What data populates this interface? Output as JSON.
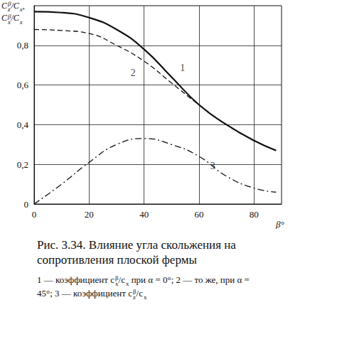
{
  "chart_data": {
    "type": "line",
    "ylabel": [
      [
        {
          "base": "C",
          "sub": "z",
          "sup": "β"
        },
        "/",
        {
          "base": "C",
          "sub": "x"
        },
        ","
      ],
      [
        {
          "base": "C",
          "sub": "x",
          "sup": "β"
        },
        "/",
        {
          "base": "C",
          "sub": "x"
        }
      ]
    ],
    "xlabel": "β°",
    "x": [
      0,
      10,
      20,
      30,
      40,
      50,
      60,
      70,
      80,
      88
    ],
    "series": [
      {
        "name": "1",
        "color": "#111111",
        "line_style": "solid",
        "values": [
          0.97,
          0.965,
          0.94,
          0.88,
          0.78,
          0.64,
          0.5,
          0.4,
          0.32,
          0.27
        ]
      },
      {
        "name": "2",
        "color": "#111111",
        "line_style": "dashed",
        "values": [
          0.88,
          0.875,
          0.86,
          0.8,
          0.72,
          0.61,
          0.5,
          0.4,
          0.32,
          0.27
        ]
      },
      {
        "name": "3",
        "color": "#111111",
        "line_style": "dashdot",
        "values": [
          0.0,
          0.1,
          0.21,
          0.3,
          0.33,
          0.3,
          0.24,
          0.14,
          0.08,
          0.06
        ]
      }
    ],
    "annotations": [
      {
        "text": "1",
        "x": 54,
        "y": 0.685
      },
      {
        "text": "2",
        "x": 36,
        "y": 0.66
      },
      {
        "text": "3",
        "x": 65,
        "y": 0.19
      }
    ],
    "xlim": [
      0,
      90
    ],
    "xticks": [
      0,
      20,
      40,
      60,
      80
    ],
    "ylim": [
      0,
      1
    ],
    "yticks": [
      0,
      {
        "value": 0.2,
        "label": "0,2"
      },
      {
        "value": 0.4,
        "label": "0,4"
      },
      {
        "value": 0.6,
        "label": "0,6"
      },
      {
        "value": 0.8,
        "label": "0,8"
      }
    ],
    "grid": true,
    "caption": {
      "title": "Рис. 3.34. Влияние угла скольжения на сопротивления плоской фермы",
      "items": [
        [
          "1 — коэффициент ",
          {
            "base": "c",
            "sub": "x",
            "sup": "β"
          },
          "/",
          {
            "base": "c",
            "sub": "x"
          },
          " при α = 0°;"
        ],
        [
          "2 — то же, при α = 45°;"
        ],
        [
          "3 — коэффициент ",
          {
            "base": "c",
            "sub": "z",
            "sup": "β"
          },
          "/",
          {
            "base": "c",
            "sub": "x"
          }
        ]
      ]
    }
  }
}
